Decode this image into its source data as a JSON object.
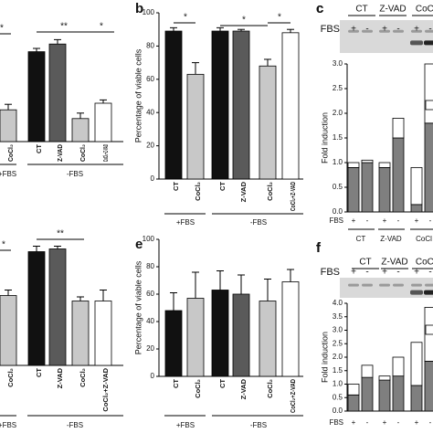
{
  "chart_data": [
    {
      "type": "bar",
      "categories": [
        "CoCl₂",
        "CT",
        "Z-VAD",
        "CoCl₂",
        "CoCl₂+Z-VAD"
      ],
      "values": [
        29,
        82,
        89,
        21,
        35
      ],
      "errors": [
        5,
        3,
        4,
        5,
        3
      ],
      "colors": [
        "#c8c8c8",
        "#111111",
        "#5a5a5a",
        "#c8c8c8",
        "#ffffff"
      ],
      "ylim": [
        0,
        100
      ],
      "groups": [
        "+FBS",
        "-FBS"
      ],
      "annotations": [
        "*",
        "**",
        "*"
      ]
    },
    {
      "type": "bar",
      "panel": "b",
      "ylabel": "Percentage of viable cells",
      "categories": [
        "CT",
        "CoCl₂",
        "CT",
        "Z-VAD",
        "CoCl₂",
        "CoCl₂+Z-VAD"
      ],
      "values": [
        89,
        63,
        89,
        89,
        68,
        88
      ],
      "errors": [
        2,
        7,
        2,
        1,
        4,
        2
      ],
      "colors": [
        "#111111",
        "#c8c8c8",
        "#111111",
        "#5a5a5a",
        "#c8c8c8",
        "#ffffff"
      ],
      "ylim": [
        0,
        100
      ],
      "yticks": [
        0,
        20,
        40,
        60,
        80,
        100
      ],
      "groups": [
        "+FBS",
        "-FBS"
      ],
      "annotations": [
        "*",
        "*",
        "*"
      ]
    },
    {
      "type": "stacked_bar",
      "panel": "c",
      "blot_columns": [
        "CT",
        "Z-VAD",
        "CoCl"
      ],
      "blot_row_label": "FBS",
      "blot_signs": [
        "+",
        "-",
        "+",
        "-",
        "+",
        "-"
      ],
      "ylabel": "Fold induction",
      "series": [
        {
          "color": "#7f7f7f",
          "values": [
            0.9,
            1.0,
            0.9,
            1.5,
            0.15,
            1.8
          ]
        },
        {
          "color": "#ffffff",
          "values": [
            0.1,
            0.05,
            0.1,
            0.4,
            0.75,
            1.2
          ]
        }
      ],
      "ylim": [
        0,
        3
      ],
      "yticks": [
        {
          "value": 0,
          "label": "0.0"
        },
        {
          "value": 0.5,
          "label": "0.5"
        },
        {
          "value": 1,
          "label": "1.0"
        },
        {
          "value": 1.5,
          "label": "1.5"
        },
        {
          "value": 2,
          "label": "2.0"
        },
        {
          "value": 2.5,
          "label": "2.5"
        },
        {
          "value": 3,
          "label": "3.0"
        }
      ],
      "row_label": "FBS",
      "signs": [
        "+",
        "-",
        "+",
        "-",
        "+",
        "-"
      ],
      "groups": [
        "CT",
        "Z-VAD",
        "CoCl"
      ]
    },
    {
      "type": "bar",
      "categories": [
        "CoCl₂",
        "CT",
        "Z-VAD",
        "CoCl₂",
        "CoCl₂+Z-VAD"
      ],
      "values": [
        51,
        83,
        85,
        47,
        47
      ],
      "errors": [
        4,
        4,
        2,
        3,
        8
      ],
      "colors": [
        "#c8c8c8",
        "#111111",
        "#5a5a5a",
        "#c8c8c8",
        "#ffffff"
      ],
      "ylim": [
        0,
        100
      ],
      "groups": [
        "+FBS",
        "-FBS"
      ],
      "annotations": [
        "*",
        "**"
      ]
    },
    {
      "type": "bar",
      "panel": "e",
      "ylabel": "Percentage of viable cells",
      "categories": [
        "CT",
        "CoCl₂",
        "CT",
        "Z-VAD",
        "CoCl₂",
        "CoCl₂+Z-VAD"
      ],
      "values": [
        48,
        57,
        63,
        60,
        55,
        69
      ],
      "errors": [
        13,
        19,
        14,
        14,
        16,
        9
      ],
      "colors": [
        "#111111",
        "#c8c8c8",
        "#111111",
        "#5a5a5a",
        "#c8c8c8",
        "#ffffff"
      ],
      "ylim": [
        0,
        100
      ],
      "yticks": [
        0,
        20,
        40,
        60,
        80,
        100
      ],
      "groups": [
        "+FBS",
        "-FBS"
      ]
    },
    {
      "type": "stacked_bar",
      "panel": "f",
      "blot_columns": [
        "CT",
        "Z-VAD",
        "CoCl"
      ],
      "blot_row_label": "FBS",
      "blot_signs": [
        "+",
        "-",
        "+",
        "-",
        "+",
        "-"
      ],
      "ylabel": "Fold induction",
      "series": [
        {
          "color": "#7f7f7f",
          "values": [
            0.6,
            1.25,
            1.15,
            1.3,
            0.95,
            1.85
          ]
        },
        {
          "color": "#ffffff",
          "values": [
            0.4,
            0.45,
            0.15,
            0.7,
            1.6,
            2.0
          ]
        }
      ],
      "ylim": [
        0,
        4
      ],
      "yticks": [
        {
          "value": 0,
          "label": "0.0"
        },
        {
          "value": 0.5,
          "label": "0.5"
        },
        {
          "value": 1,
          "label": "1.0"
        },
        {
          "value": 1.5,
          "label": "1.5"
        },
        {
          "value": 2,
          "label": "2.0"
        },
        {
          "value": 2.5,
          "label": "2.5"
        },
        {
          "value": 3,
          "label": "3.0"
        },
        {
          "value": 3.5,
          "label": "3.5"
        },
        {
          "value": 4,
          "label": "4.0"
        }
      ],
      "row_label": "FBS",
      "signs": [
        "+",
        "-",
        "+",
        "-",
        "+",
        "-"
      ]
    }
  ]
}
